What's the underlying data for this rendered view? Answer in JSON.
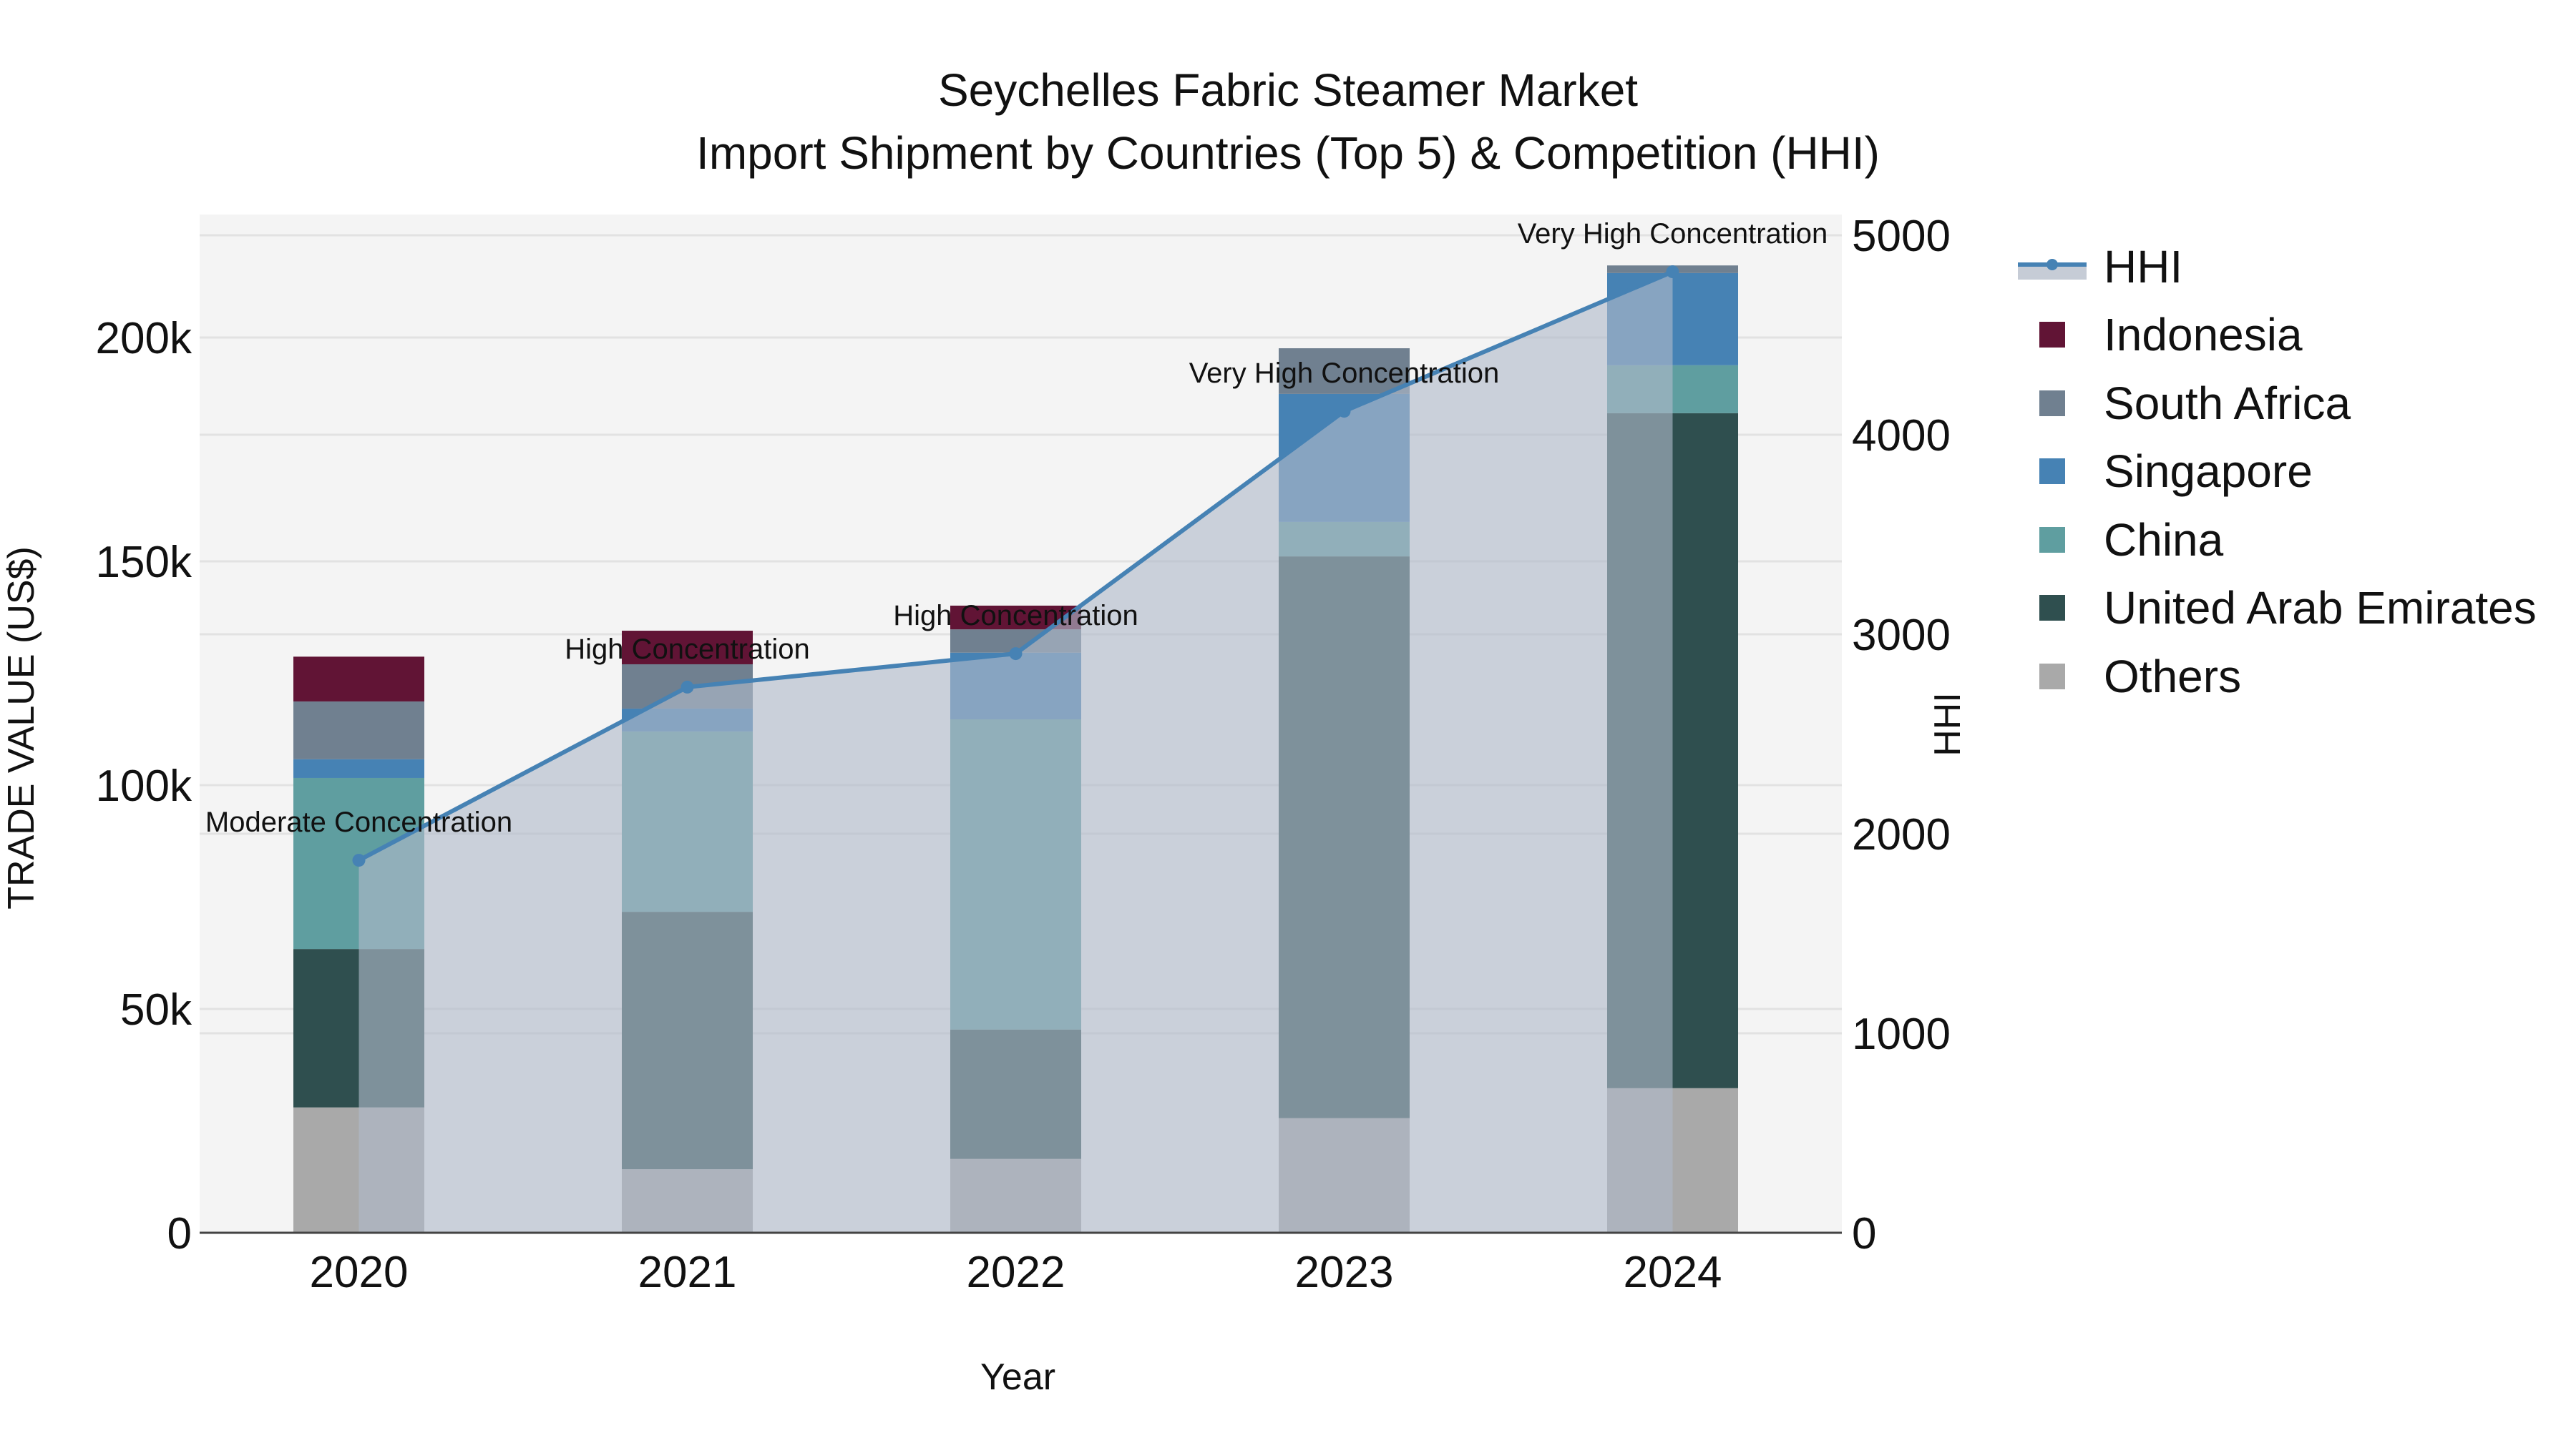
{
  "title": {
    "line1": "Seychelles Fabric Steamer Market",
    "line2": "Import Shipment by Countries (Top 5) & Competition (HHI)"
  },
  "axes": {
    "x_title": "Year",
    "y_left_title": "TRADE VALUE (US$)",
    "y_right_title": "HHI",
    "y_left_ticks": [
      "0",
      "50k",
      "100k",
      "150k",
      "200k"
    ],
    "y_right_ticks": [
      "0",
      "1000",
      "2000",
      "3000",
      "4000",
      "5000"
    ]
  },
  "legend": {
    "items": [
      {
        "label": "HHI",
        "type": "line",
        "color": "#4682b4"
      },
      {
        "label": "Indonesia",
        "type": "bar",
        "color": "#611435"
      },
      {
        "label": "South Africa",
        "type": "bar",
        "color": "#708090"
      },
      {
        "label": "Singapore",
        "type": "bar",
        "color": "#4682b4"
      },
      {
        "label": "China",
        "type": "bar",
        "color": "#5f9ea0"
      },
      {
        "label": "United Arab Emirates",
        "type": "bar",
        "color": "#2f4f4f"
      },
      {
        "label": "Others",
        "type": "bar",
        "color": "#a9a9a9"
      }
    ]
  },
  "chart_data": {
    "type": "bar",
    "subtype": "stacked bar + line (dual axis)",
    "title": "Seychelles Fabric Steamer Market — Import Shipment by Countries (Top 5) & Competition (HHI)",
    "xlabel": "Year",
    "ylabel": "TRADE VALUE (US$)",
    "y2label": "HHI",
    "categories": [
      "2020",
      "2021",
      "2022",
      "2023",
      "2024"
    ],
    "ylim": [
      0,
      227000
    ],
    "y2lim": [
      0,
      5100
    ],
    "grid": true,
    "legend_position": "right",
    "series": [
      {
        "name": "Others",
        "axis": "left",
        "color": "#a9a9a9",
        "values": [
          28000,
          14200,
          16500,
          25600,
          32300
        ]
      },
      {
        "name": "United Arab Emirates",
        "axis": "left",
        "color": "#2f4f4f",
        "values": [
          35400,
          57500,
          28900,
          125500,
          150800
        ]
      },
      {
        "name": "China",
        "axis": "left",
        "color": "#5f9ea0",
        "values": [
          38200,
          40300,
          69300,
          7700,
          10700
        ]
      },
      {
        "name": "Singapore",
        "axis": "left",
        "color": "#4682b4",
        "values": [
          4200,
          5100,
          14900,
          28600,
          20600
        ]
      },
      {
        "name": "South Africa",
        "axis": "left",
        "color": "#708090",
        "values": [
          12900,
          9900,
          5200,
          10200,
          1700
        ]
      },
      {
        "name": "Indonesia",
        "axis": "left",
        "color": "#611435",
        "values": [
          10000,
          7500,
          5300,
          0,
          0
        ]
      },
      {
        "name": "HHI",
        "axis": "right",
        "type": "line",
        "color": "#4682b4",
        "fill": "tozeroy",
        "values": [
          1867,
          2735,
          2903,
          4118,
          4817
        ]
      }
    ],
    "annotations": [
      {
        "x": "2020",
        "text": "Moderate Concentration"
      },
      {
        "x": "2021",
        "text": "High Concentration"
      },
      {
        "x": "2022",
        "text": "High Concentration"
      },
      {
        "x": "2023",
        "text": "Very High Concentration"
      },
      {
        "x": "2024",
        "text": "Very High Concentration"
      }
    ]
  }
}
